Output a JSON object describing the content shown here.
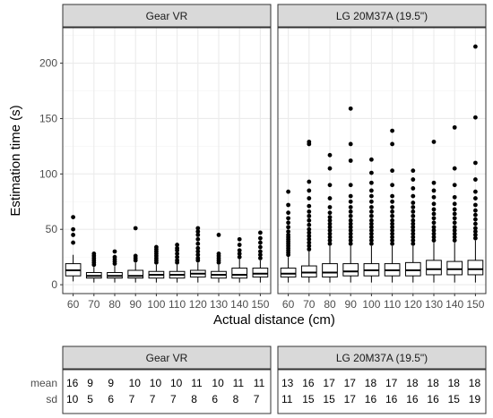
{
  "chart_data": {
    "type": "boxplot",
    "xlabel": "Actual distance (cm)",
    "ylabel": "Estimation time (s)",
    "ylim": [
      -8,
      232
    ],
    "yticks": [
      0,
      50,
      100,
      150,
      200
    ],
    "grid": true,
    "categories": [
      "60",
      "70",
      "80",
      "90",
      "100",
      "110",
      "120",
      "130",
      "140",
      "150"
    ],
    "panels": [
      {
        "name": "Gear VR",
        "boxes": [
          {
            "x": "60",
            "min": 3,
            "q1": 8,
            "median": 13,
            "q3": 19,
            "max": 27,
            "outliers": [
              38,
              45,
              50,
              61
            ]
          },
          {
            "x": "70",
            "min": 2,
            "q1": 6,
            "median": 8,
            "q3": 11,
            "max": 16,
            "outliers": [
              18,
              20,
              22,
              24,
              26,
              28
            ]
          },
          {
            "x": "80",
            "min": 2,
            "q1": 6,
            "median": 8,
            "q3": 11,
            "max": 17,
            "outliers": [
              19,
              21,
              23,
              25,
              30
            ]
          },
          {
            "x": "90",
            "min": 2,
            "q1": 6,
            "median": 8,
            "q3": 13,
            "max": 20,
            "outliers": [
              22,
              24,
              26,
              51
            ]
          },
          {
            "x": "100",
            "min": 2,
            "q1": 6,
            "median": 9,
            "q3": 12,
            "max": 18,
            "outliers": [
              20,
              22,
              24,
              26,
              28,
              30,
              32,
              34
            ]
          },
          {
            "x": "110",
            "min": 2,
            "q1": 6,
            "median": 9,
            "q3": 12,
            "max": 18,
            "outliers": [
              20,
              22,
              25,
              28,
              31,
              33,
              36
            ]
          },
          {
            "x": "120",
            "min": 2,
            "q1": 7,
            "median": 10,
            "q3": 13,
            "max": 20,
            "outliers": [
              22,
              24,
              27,
              30,
              33,
              37,
              41,
              45,
              48,
              51
            ]
          },
          {
            "x": "130",
            "min": 2,
            "q1": 6,
            "median": 9,
            "q3": 12,
            "max": 18,
            "outliers": [
              20,
              22,
              24,
              26,
              28,
              45
            ]
          },
          {
            "x": "140",
            "min": 2,
            "q1": 6,
            "median": 9,
            "q3": 15,
            "max": 23,
            "outliers": [
              25,
              28,
              31,
              36,
              41
            ]
          },
          {
            "x": "150",
            "min": 2,
            "q1": 7,
            "median": 10,
            "q3": 15,
            "max": 22,
            "outliers": [
              24,
              27,
              30,
              34,
              38,
              42,
              47
            ]
          }
        ]
      },
      {
        "name": "LG 20M37A (19.5\")",
        "boxes": [
          {
            "x": "60",
            "min": 2,
            "q1": 7,
            "median": 10,
            "q3": 15,
            "max": 25,
            "outliers": [
              27,
              29,
              31,
              33,
              35,
              37,
              39,
              41,
              43,
              45,
              48,
              52,
              56,
              60,
              65,
              72,
              84
            ]
          },
          {
            "x": "70",
            "min": 2,
            "q1": 7,
            "median": 11,
            "q3": 17,
            "max": 30,
            "outliers": [
              32,
              35,
              38,
              41,
              44,
              47,
              50,
              54,
              58,
              62,
              66,
              71,
              78,
              85,
              93,
              127,
              129
            ]
          },
          {
            "x": "80",
            "min": 2,
            "q1": 7,
            "median": 11,
            "q3": 19,
            "max": 35,
            "outliers": [
              37,
              40,
              43,
              46,
              49,
              52,
              55,
              58,
              61,
              65,
              70,
              78,
              90,
              105,
              117
            ]
          },
          {
            "x": "90",
            "min": 2,
            "q1": 8,
            "median": 12,
            "q3": 19,
            "max": 35,
            "outliers": [
              37,
              40,
              43,
              46,
              49,
              52,
              55,
              58,
              62,
              66,
              70,
              75,
              80,
              90,
              112,
              127,
              159
            ]
          },
          {
            "x": "100",
            "min": 2,
            "q1": 8,
            "median": 13,
            "q3": 19,
            "max": 35,
            "outliers": [
              37,
              40,
              43,
              46,
              49,
              52,
              55,
              58,
              62,
              66,
              70,
              75,
              80,
              85,
              92,
              101,
              113
            ]
          },
          {
            "x": "110",
            "min": 2,
            "q1": 8,
            "median": 13,
            "q3": 19,
            "max": 35,
            "outliers": [
              37,
              40,
              43,
              46,
              49,
              52,
              55,
              58,
              62,
              66,
              70,
              75,
              80,
              90,
              103,
              127,
              139
            ]
          },
          {
            "x": "120",
            "min": 2,
            "q1": 8,
            "median": 13,
            "q3": 20,
            "max": 35,
            "outliers": [
              37,
              40,
              43,
              46,
              49,
              52,
              55,
              58,
              62,
              66,
              70,
              74,
              80,
              87,
              95,
              103
            ]
          },
          {
            "x": "130",
            "min": 2,
            "q1": 9,
            "median": 14,
            "q3": 22,
            "max": 38,
            "outliers": [
              40,
              43,
              46,
              49,
              52,
              56,
              60,
              64,
              68,
              73,
              79,
              85,
              92,
              129
            ]
          },
          {
            "x": "140",
            "min": 2,
            "q1": 9,
            "median": 14,
            "q3": 21,
            "max": 38,
            "outliers": [
              40,
              43,
              46,
              49,
              52,
              56,
              60,
              64,
              68,
              73,
              79,
              90,
              105,
              142
            ]
          },
          {
            "x": "150",
            "min": 2,
            "q1": 9,
            "median": 14,
            "q3": 22,
            "max": 40,
            "outliers": [
              42,
              45,
              48,
              51,
              55,
              59,
              63,
              67,
              72,
              78,
              84,
              95,
              110,
              151,
              215
            ]
          }
        ]
      }
    ]
  },
  "stats_table": {
    "row_labels": [
      "mean",
      "sd"
    ],
    "panels": [
      {
        "name": "Gear VR",
        "mean": [
          "16",
          "9",
          "9",
          "10",
          "10",
          "10",
          "11",
          "10",
          "11",
          "11"
        ],
        "sd": [
          "10",
          "5",
          "6",
          "7",
          "7",
          "7",
          "8",
          "6",
          "8",
          "7"
        ]
      },
      {
        "name": "LG 20M37A (19.5\")",
        "mean": [
          "13",
          "16",
          "17",
          "17",
          "18",
          "17",
          "18",
          "18",
          "18",
          "18"
        ],
        "sd": [
          "11",
          "15",
          "15",
          "17",
          "16",
          "16",
          "16",
          "16",
          "15",
          "19"
        ]
      }
    ]
  },
  "colors": {
    "panel_bg": "#ffffff",
    "strip_bg": "#d9d9d9",
    "border": "#333333",
    "grid_major": "#ebebeb",
    "grid_minor": "#f5f5f5",
    "box_fill": "#ffffff",
    "box_line": "#000000",
    "axis_text": "#4d4d4d",
    "title_text": "#000000"
  }
}
